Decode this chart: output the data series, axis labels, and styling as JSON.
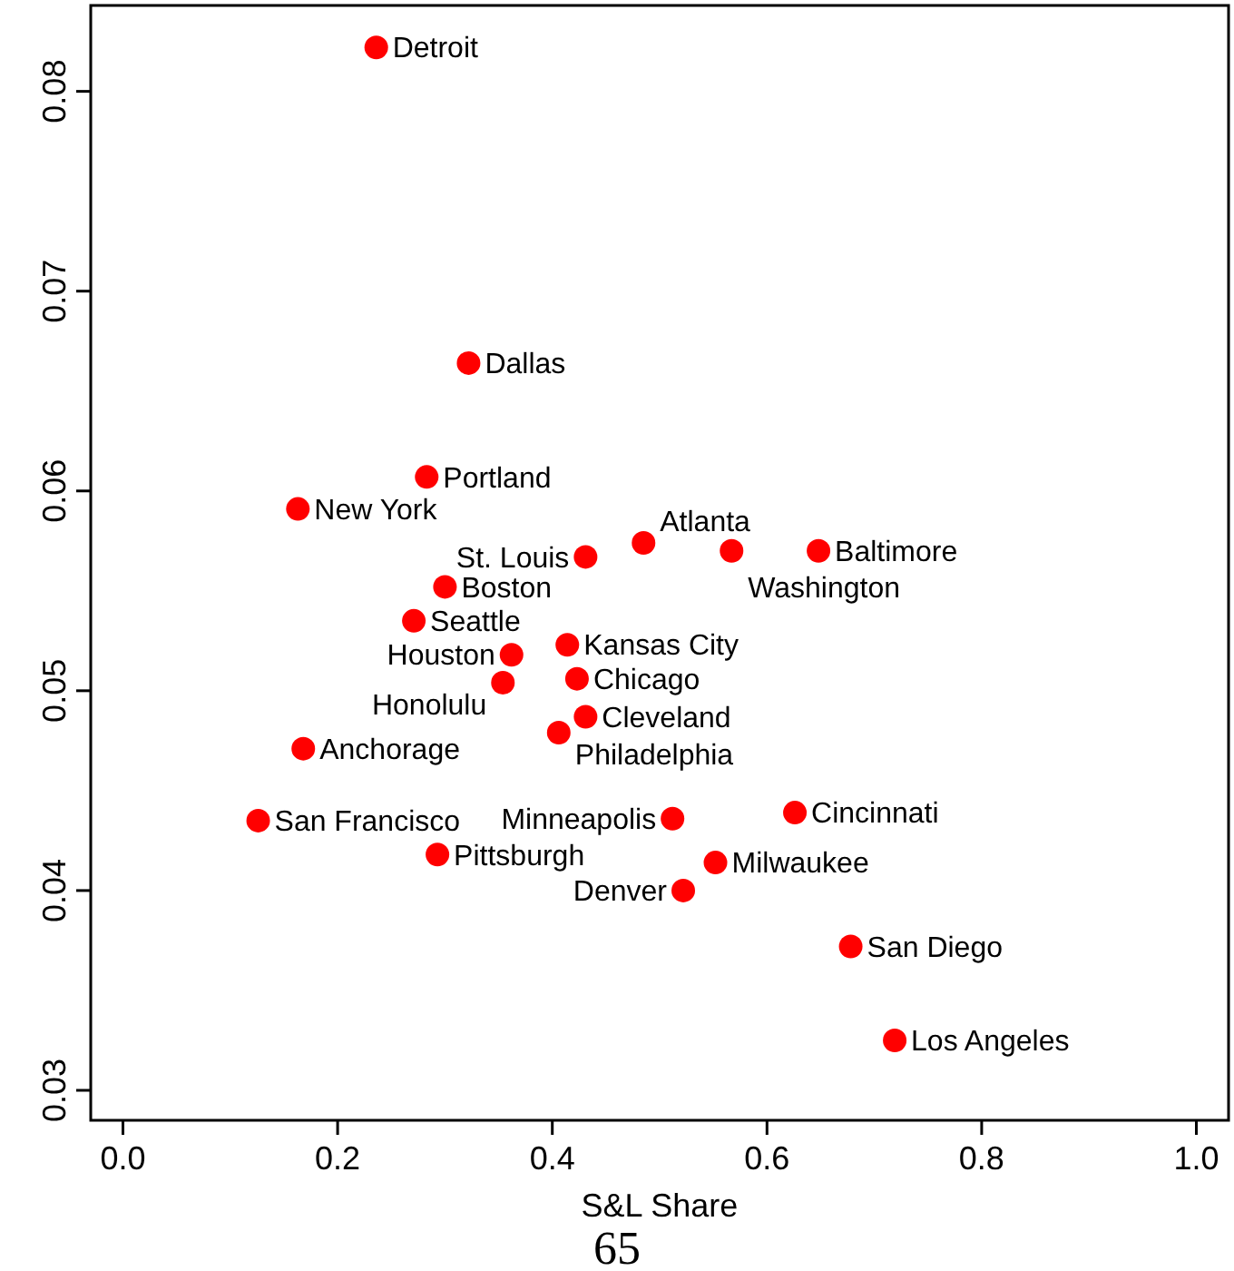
{
  "chart_data": {
    "type": "scatter",
    "xlabel": "S&L Share",
    "xlim": [
      -0.03,
      1.03
    ],
    "ylim": [
      0.0285,
      0.0843
    ],
    "xticks": [
      {
        "value": 0,
        "label": "0.0"
      },
      {
        "value": 0.2,
        "label": "0.2"
      },
      {
        "value": 0.4,
        "label": "0.4"
      },
      {
        "value": 0.6,
        "label": "0.6"
      },
      {
        "value": 0.8,
        "label": "0.8"
      },
      {
        "value": 1,
        "label": "1.0"
      }
    ],
    "yticks": [
      {
        "value": 0.03,
        "label": "0.03"
      },
      {
        "value": 0.04,
        "label": "0.04"
      },
      {
        "value": 0.05,
        "label": "0.05"
      },
      {
        "value": 0.06,
        "label": "0.06"
      },
      {
        "value": 0.07,
        "label": "0.07"
      },
      {
        "value": 0.08,
        "label": "0.08"
      }
    ],
    "grid": false,
    "marker": "circle",
    "series": [
      {
        "color": "#ff0000",
        "x": [
          0.236,
          0.322,
          0.283,
          0.163,
          0.485,
          0.567,
          0.431,
          0.648,
          0.3,
          0.271,
          0.362,
          0.414,
          0.354,
          0.423,
          0.431,
          0.406,
          0.168,
          0.126,
          0.512,
          0.626,
          0.293,
          0.552,
          0.522,
          0.678,
          0.719
        ],
        "values": [
          0.0822,
          0.0664,
          0.0607,
          0.0591,
          0.0574,
          0.057,
          0.0567,
          0.057,
          0.0552,
          0.0535,
          0.0518,
          0.0523,
          0.0504,
          0.0506,
          0.0487,
          0.0479,
          0.0471,
          0.0435,
          0.0436,
          0.0439,
          0.0418,
          0.0414,
          0.04,
          0.0372,
          0.0325
        ]
      }
    ],
    "annotations": [
      {
        "text": "Detroit",
        "x": 0.236,
        "y": 0.0822
      },
      {
        "text": "Dallas",
        "x": 0.322,
        "y": 0.0664
      },
      {
        "text": "Portland",
        "x": 0.283,
        "y": 0.0607
      },
      {
        "text": "New York",
        "x": 0.163,
        "y": 0.0591
      },
      {
        "text": "Atlanta",
        "x": 0.485,
        "y": 0.0574
      },
      {
        "text": "Washington",
        "x": 0.567,
        "y": 0.057
      },
      {
        "text": "St. Louis",
        "x": 0.431,
        "y": 0.0567
      },
      {
        "text": "Baltimore",
        "x": 0.648,
        "y": 0.057
      },
      {
        "text": "Boston",
        "x": 0.3,
        "y": 0.0552
      },
      {
        "text": "Seattle",
        "x": 0.271,
        "y": 0.0535
      },
      {
        "text": "Houston",
        "x": 0.362,
        "y": 0.0518
      },
      {
        "text": "Kansas City",
        "x": 0.414,
        "y": 0.0523
      },
      {
        "text": "Honolulu",
        "x": 0.354,
        "y": 0.0504
      },
      {
        "text": "Chicago",
        "x": 0.423,
        "y": 0.0506
      },
      {
        "text": "Cleveland",
        "x": 0.431,
        "y": 0.0487
      },
      {
        "text": "Philadelphia",
        "x": 0.406,
        "y": 0.0479
      },
      {
        "text": "Anchorage",
        "x": 0.168,
        "y": 0.0471
      },
      {
        "text": "San Francisco",
        "x": 0.126,
        "y": 0.0435
      },
      {
        "text": "Minneapolis",
        "x": 0.512,
        "y": 0.0436
      },
      {
        "text": "Cincinnati",
        "x": 0.626,
        "y": 0.0439
      },
      {
        "text": "Pittsburgh",
        "x": 0.293,
        "y": 0.0418
      },
      {
        "text": "Milwaukee",
        "x": 0.552,
        "y": 0.0414
      },
      {
        "text": "Denver",
        "x": 0.522,
        "y": 0.04
      },
      {
        "text": "San Diego",
        "x": 0.678,
        "y": 0.0372
      },
      {
        "text": "Los Angeles",
        "x": 0.719,
        "y": 0.0325
      },
      "65"
    ]
  }
}
